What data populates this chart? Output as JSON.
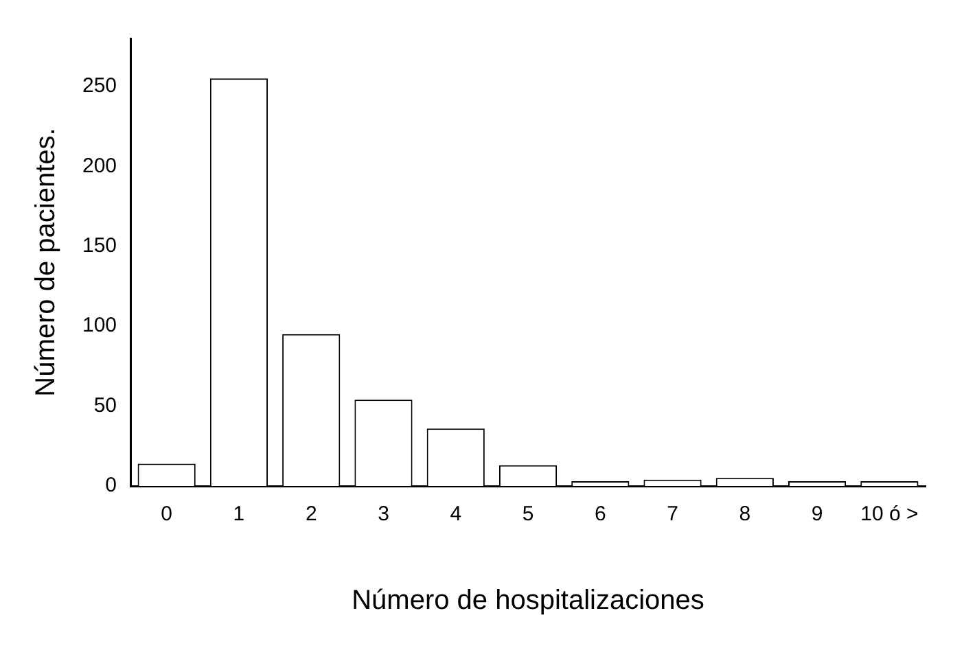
{
  "chart_data": {
    "type": "bar",
    "xlabel": "Número de hospitalizaciones",
    "ylabel": "Número de pacientes.",
    "categories": [
      "0",
      "1",
      "2",
      "3",
      "4",
      "5",
      "6",
      "7",
      "8",
      "9",
      "10 ó >"
    ],
    "values": [
      14,
      255,
      95,
      54,
      36,
      13,
      3,
      4,
      5,
      3,
      3
    ],
    "color": "#ffffff",
    "ylim": [
      0,
      280
    ],
    "yticks": [
      0,
      50,
      100,
      150,
      200,
      250
    ],
    "grid": false,
    "legend": false
  }
}
